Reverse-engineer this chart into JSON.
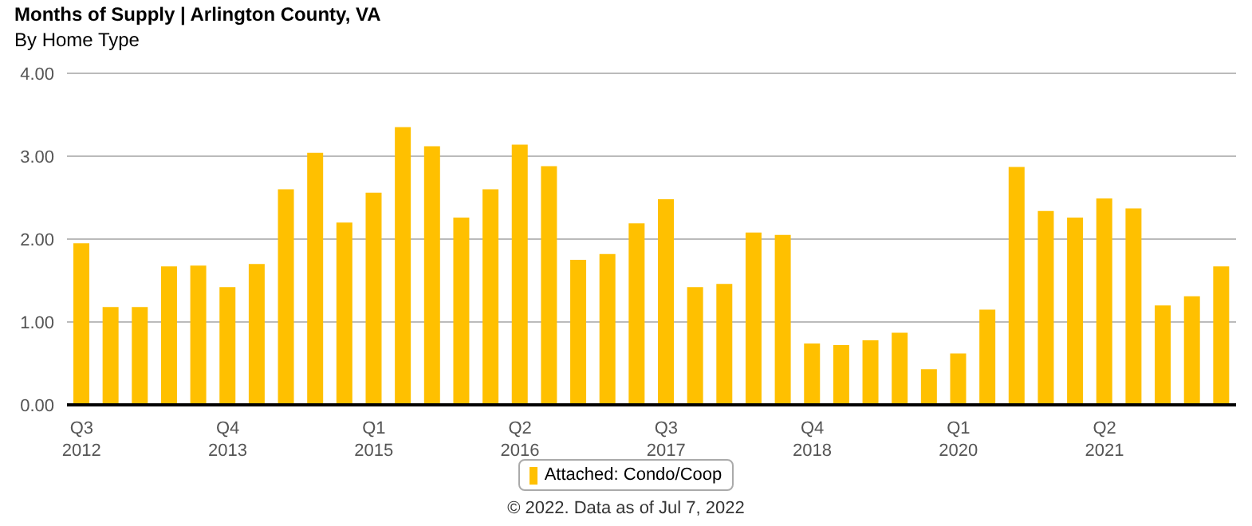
{
  "chart_data": {
    "type": "bar",
    "title": "Months of Supply | Arlington County, VA",
    "subtitle": "By Home Type",
    "categories": [
      "Q3 2012",
      null,
      null,
      null,
      null,
      "Q4 2013",
      null,
      null,
      null,
      null,
      "Q1 2015",
      null,
      null,
      null,
      null,
      "Q2 2016",
      null,
      null,
      null,
      null,
      "Q3 2017",
      null,
      null,
      null,
      null,
      "Q4 2018",
      null,
      null,
      null,
      null,
      "Q1 2020",
      null,
      null,
      null,
      null,
      "Q2 2021",
      null,
      null,
      null,
      null
    ],
    "series": [
      {
        "name": "Attached: Condo/Coop",
        "color": "#ffc000",
        "values": [
          1.95,
          1.18,
          1.18,
          1.67,
          1.68,
          1.42,
          1.7,
          2.6,
          3.04,
          2.2,
          2.56,
          3.35,
          3.12,
          2.26,
          2.6,
          3.14,
          2.88,
          1.75,
          1.82,
          2.19,
          2.48,
          1.42,
          1.46,
          2.08,
          2.05,
          0.74,
          0.72,
          0.78,
          0.87,
          0.43,
          0.62,
          1.15,
          2.87,
          2.34,
          2.26,
          2.49,
          2.37,
          1.2,
          1.31,
          1.67
        ]
      }
    ],
    "ylim": [
      0,
      4
    ],
    "yticks": [
      {
        "value": 0,
        "label": "0.00"
      },
      {
        "value": 1,
        "label": "1.00"
      },
      {
        "value": 2,
        "label": "2.00"
      },
      {
        "value": 3,
        "label": "3.00"
      },
      {
        "value": 4,
        "label": "4.00"
      }
    ],
    "grid": "y",
    "legend": "bottom",
    "annotations": [
      "© 2022. Data as of Jul 7, 2022"
    ]
  }
}
